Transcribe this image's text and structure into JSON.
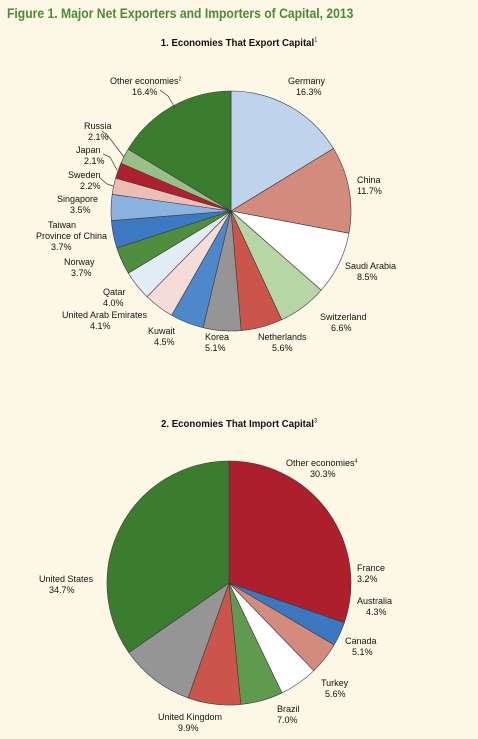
{
  "figure_title": "Figure 1. Major Net Exporters and Importers of Capital, 2013",
  "panels": [
    {
      "title": "1. Economies That Export Capital",
      "footnote": "1"
    },
    {
      "title": "2. Economies That Import Capital",
      "footnote": "3"
    }
  ],
  "chart_data": [
    {
      "type": "pie",
      "title": "1. Economies That Export Capital",
      "title_footnote": "1",
      "start": "12 o'clock, clockwise",
      "slices": [
        {
          "label": "Germany",
          "value": 16.3,
          "value_label": "16.3%",
          "color": "#c0d3ec"
        },
        {
          "label": "China",
          "value": 11.7,
          "value_label": "11.7%",
          "color": "#d38b7d"
        },
        {
          "label": "Saudi Arabia",
          "value": 8.5,
          "value_label": "8.5%",
          "color": "#ffffff"
        },
        {
          "label": "Switzerland",
          "value": 6.6,
          "value_label": "6.6%",
          "color": "#b6d6a6"
        },
        {
          "label": "Netherlands",
          "value": 5.6,
          "value_label": "5.6%",
          "color": "#cb554a"
        },
        {
          "label": "Korea",
          "value": 5.1,
          "value_label": "5.1%",
          "color": "#959595"
        },
        {
          "label": "Kuwait",
          "value": 4.5,
          "value_label": "4.5%",
          "color": "#4d88cb"
        },
        {
          "label": "United Arab Emirates",
          "value": 4.1,
          "value_label": "4.1%",
          "color": "#f5dcd8"
        },
        {
          "label": "Qatar",
          "value": 4.0,
          "value_label": "4.0%",
          "color": "#e2ecf7"
        },
        {
          "label": "Norway",
          "value": 3.7,
          "value_label": "3.7%",
          "color": "#4e8e3d"
        },
        {
          "label": "Taiwan Province of China",
          "value": 3.7,
          "value_label": "3.7%",
          "color": "#3b79c2"
        },
        {
          "label": "Singapore",
          "value": 3.5,
          "value_label": "3.5%",
          "color": "#8bb3df"
        },
        {
          "label": "Sweden",
          "value": 2.2,
          "value_label": "2.2%",
          "color": "#ecbcb5"
        },
        {
          "label": "Japan",
          "value": 2.1,
          "value_label": "2.1%",
          "color": "#b01f2e"
        },
        {
          "label": "Russia",
          "value": 2.1,
          "value_label": "2.1%",
          "color": "#98bf87"
        },
        {
          "label": "Other economies",
          "footnote": "2",
          "value": 16.4,
          "value_label": "16.4%",
          "color": "#3a7d2e"
        }
      ]
    },
    {
      "type": "pie",
      "title": "2. Economies That Import Capital",
      "title_footnote": "3",
      "start": "12 o'clock, clockwise",
      "slices": [
        {
          "label": "Other economies",
          "footnote": "4",
          "value": 30.3,
          "value_label": "30.3%",
          "color": "#ad1f2d"
        },
        {
          "label": "France",
          "value": 3.2,
          "value_label": "3.2%",
          "color": "#3a79c2"
        },
        {
          "label": "Australia",
          "value": 4.3,
          "value_label": "4.3%",
          "color": "#d38b7d"
        },
        {
          "label": "Canada",
          "value": 5.1,
          "value_label": "5.1%",
          "color": "#ffffff"
        },
        {
          "label": "Turkey",
          "value": 5.6,
          "value_label": "5.6%",
          "color": "#5f9a4f"
        },
        {
          "label": "Brazil",
          "value": 7.0,
          "value_label": "7.0%",
          "color": "#cb554a"
        },
        {
          "label": "United Kingdom",
          "value": 9.9,
          "value_label": "9.9%",
          "color": "#959595"
        },
        {
          "label": "United States",
          "value": 34.7,
          "value_label": "34.7%",
          "color": "#3a7d2e"
        }
      ]
    }
  ]
}
